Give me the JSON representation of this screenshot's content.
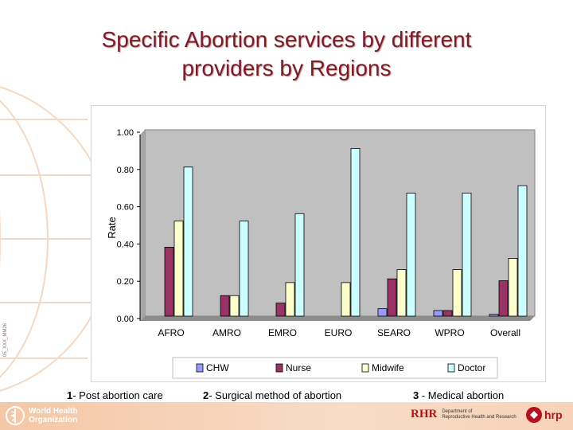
{
  "slide": {
    "title_line1": "Specific Abortion services  by different",
    "title_line2": "providers by Regions",
    "side_code": "05_XXX_MM26",
    "footnotes": [
      {
        "num": "1",
        "text": "- Post abortion care"
      },
      {
        "num": "2",
        "text": "- Surgical method of abortion"
      },
      {
        "num": "3",
        "text": " -  Medical abortion"
      }
    ],
    "logos": {
      "who_line1": "World Health",
      "who_line2": "Organization",
      "rhr_mark": "RHR",
      "rhr_line1": "Department of",
      "rhr_line2": "Reproductive Health and Research",
      "hrp_text": "hrp"
    }
  },
  "chart_data": {
    "type": "bar",
    "title": "",
    "xlabel": "",
    "ylabel": "Rate",
    "ylim": [
      0,
      1.0
    ],
    "yticks": [
      "0.00",
      "0.20",
      "0.40",
      "0.60",
      "0.80",
      "1.00"
    ],
    "grid": false,
    "legend_position": "bottom",
    "categories": [
      "AFRO",
      "AMRO",
      "EMRO",
      "EURO",
      "SEARO",
      "WPRO",
      "Overall"
    ],
    "series": [
      {
        "name": "CHW",
        "color": "#9999ff",
        "values": [
          0.0,
          0.0,
          0.0,
          0.0,
          0.04,
          0.03,
          0.01
        ]
      },
      {
        "name": "Nurse",
        "color": "#993366",
        "values": [
          0.37,
          0.11,
          0.07,
          0.0,
          0.2,
          0.03,
          0.19
        ]
      },
      {
        "name": "Midwife",
        "color": "#ffffcc",
        "values": [
          0.51,
          0.11,
          0.18,
          0.18,
          0.25,
          0.25,
          0.31
        ]
      },
      {
        "name": "Doctor",
        "color": "#ccffff",
        "values": [
          0.8,
          0.51,
          0.55,
          0.9,
          0.66,
          0.66,
          0.7
        ]
      }
    ]
  }
}
